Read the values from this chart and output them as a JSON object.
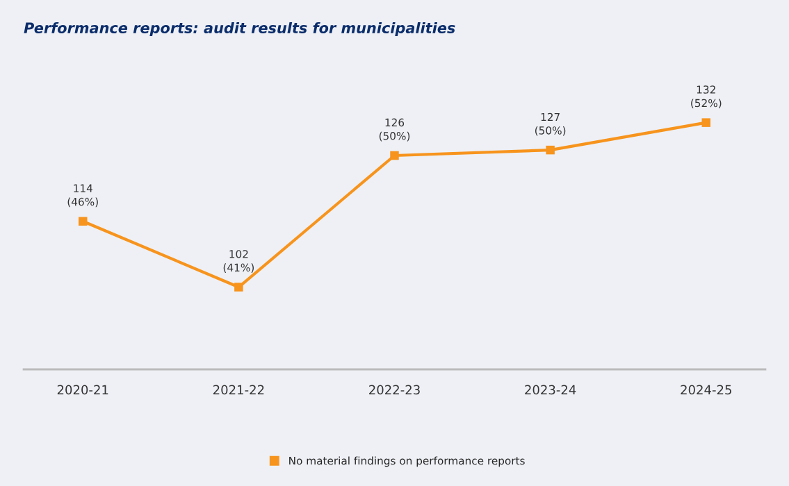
{
  "chart_data": {
    "type": "line",
    "title": "Performance reports: audit results for municipalities",
    "categories": [
      "2020-21",
      "2021-22",
      "2022-23",
      "2023-24",
      "2024-25"
    ],
    "series": [
      {
        "name": "No material findings on performance reports",
        "color": "#f7941d",
        "values": [
          114,
          102,
          126,
          127,
          132
        ],
        "value_labels": [
          "114\n(46%)",
          "102\n(41%)",
          "126\n(50%)",
          "127\n(50%)",
          "132\n(52%)"
        ]
      }
    ],
    "marker": "square",
    "line_style": "solid",
    "legend": "bottom",
    "grid": false
  }
}
